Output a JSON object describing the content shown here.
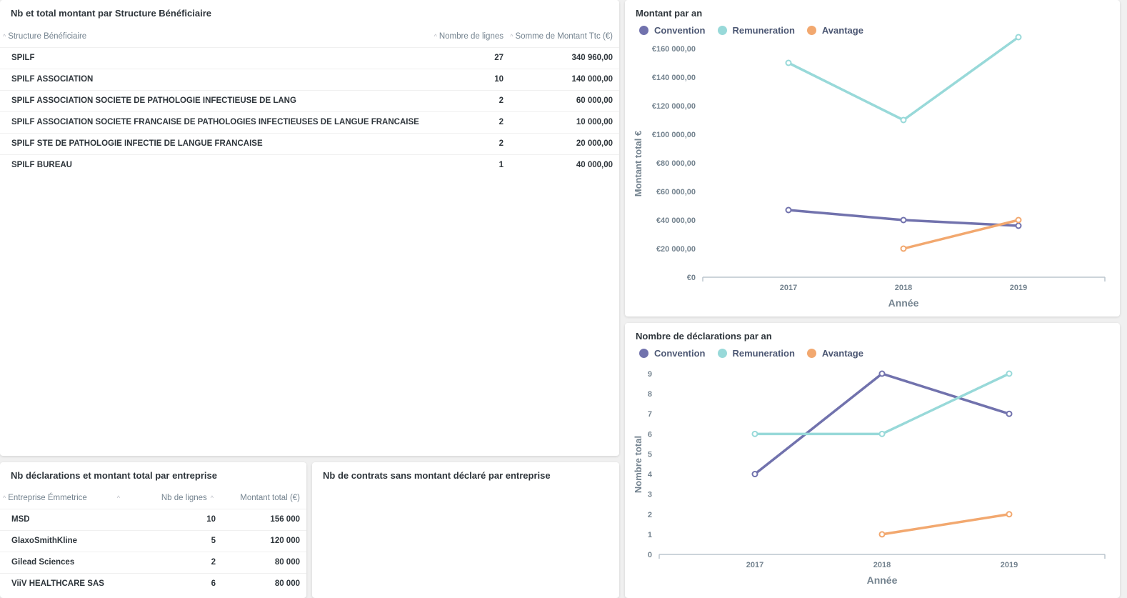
{
  "card_structure": {
    "title": "Nb et total montant par Structure Bénéficiaire",
    "columns": [
      "Structure Bénéficiaire",
      "Nombre de lignes",
      "Somme de Montant Ttc (€)"
    ],
    "rows": [
      [
        "SPILF",
        "27",
        "340 960,00"
      ],
      [
        "SPILF ASSOCIATION",
        "10",
        "140 000,00"
      ],
      [
        "SPILF ASSOCIATION SOCIETE DE PATHOLOGIE INFECTIEUSE DE LANG",
        "2",
        "60 000,00"
      ],
      [
        "SPILF ASSOCIATION SOCIETE FRANCAISE DE PATHOLOGIES INFECTIEUSES DE LANGUE FRANCAISE",
        "2",
        "10 000,00"
      ],
      [
        "SPILF STE DE PATHOLOGIE INFECTIE DE LANGUE FRANCAISE",
        "2",
        "20 000,00"
      ],
      [
        "SPILF BUREAU",
        "1",
        "40 000,00"
      ]
    ]
  },
  "card_entreprise": {
    "title": "Nb déclarations et montant total par entreprise",
    "columns": [
      "Entreprise Émmetrice",
      "Nb de lignes",
      "Montant total (€)"
    ],
    "rows": [
      [
        "MSD",
        "10",
        "156 000"
      ],
      [
        "GlaxoSmithKline",
        "5",
        "120 000"
      ],
      [
        "Gilead Sciences",
        "2",
        "80 000"
      ],
      [
        "ViiV HEALTHCARE SAS",
        "6",
        "80 000"
      ]
    ]
  },
  "card_contrats": {
    "title": "Nb de contrats sans montant déclaré par entreprise"
  },
  "legend": {
    "convention": "Convention",
    "remuneration": "Remuneration",
    "avantage": "Avantage"
  },
  "colors": {
    "convention": "#7172ad",
    "remuneration": "#98d9d9",
    "avantage": "#f2a86f"
  },
  "sort_icon": "chevron-up-icon",
  "chart_data": [
    {
      "type": "line",
      "title": "Montant par an",
      "xlabel": "Année",
      "ylabel": "Montant total €",
      "categories": [
        "2017",
        "2018",
        "2019"
      ],
      "ylim": [
        0,
        170000
      ],
      "yticks": [
        0,
        20000,
        40000,
        60000,
        80000,
        100000,
        120000,
        140000,
        160000
      ],
      "ytick_labels": [
        "€0",
        "€20 000,00",
        "€40 000,00",
        "€60 000,00",
        "€80 000,00",
        "€100 000,00",
        "€120 000,00",
        "€140 000,00",
        "€160 000,00"
      ],
      "series": [
        {
          "key": "convention",
          "name": "Convention",
          "values": [
            47000,
            40000,
            36000
          ]
        },
        {
          "key": "remuneration",
          "name": "Remuneration",
          "values": [
            150000,
            110000,
            168000
          ]
        },
        {
          "key": "avantage",
          "name": "Avantage",
          "values": [
            null,
            20000,
            40000
          ]
        }
      ],
      "grid": false
    },
    {
      "type": "line",
      "title": "Nombre de déclarations par an",
      "xlabel": "Année",
      "ylabel": "Nombre total",
      "categories": [
        "2017",
        "2018",
        "2019"
      ],
      "ylim": [
        0,
        9
      ],
      "yticks": [
        0,
        1,
        2,
        3,
        4,
        5,
        6,
        7,
        8,
        9
      ],
      "ytick_labels": [
        "0",
        "1",
        "2",
        "3",
        "4",
        "5",
        "6",
        "7",
        "8",
        "9"
      ],
      "series": [
        {
          "key": "convention",
          "name": "Convention",
          "values": [
            4,
            9,
            7
          ]
        },
        {
          "key": "remuneration",
          "name": "Remuneration",
          "values": [
            6,
            6,
            9
          ]
        },
        {
          "key": "avantage",
          "name": "Avantage",
          "values": [
            null,
            1,
            2
          ]
        }
      ],
      "grid": false
    }
  ]
}
